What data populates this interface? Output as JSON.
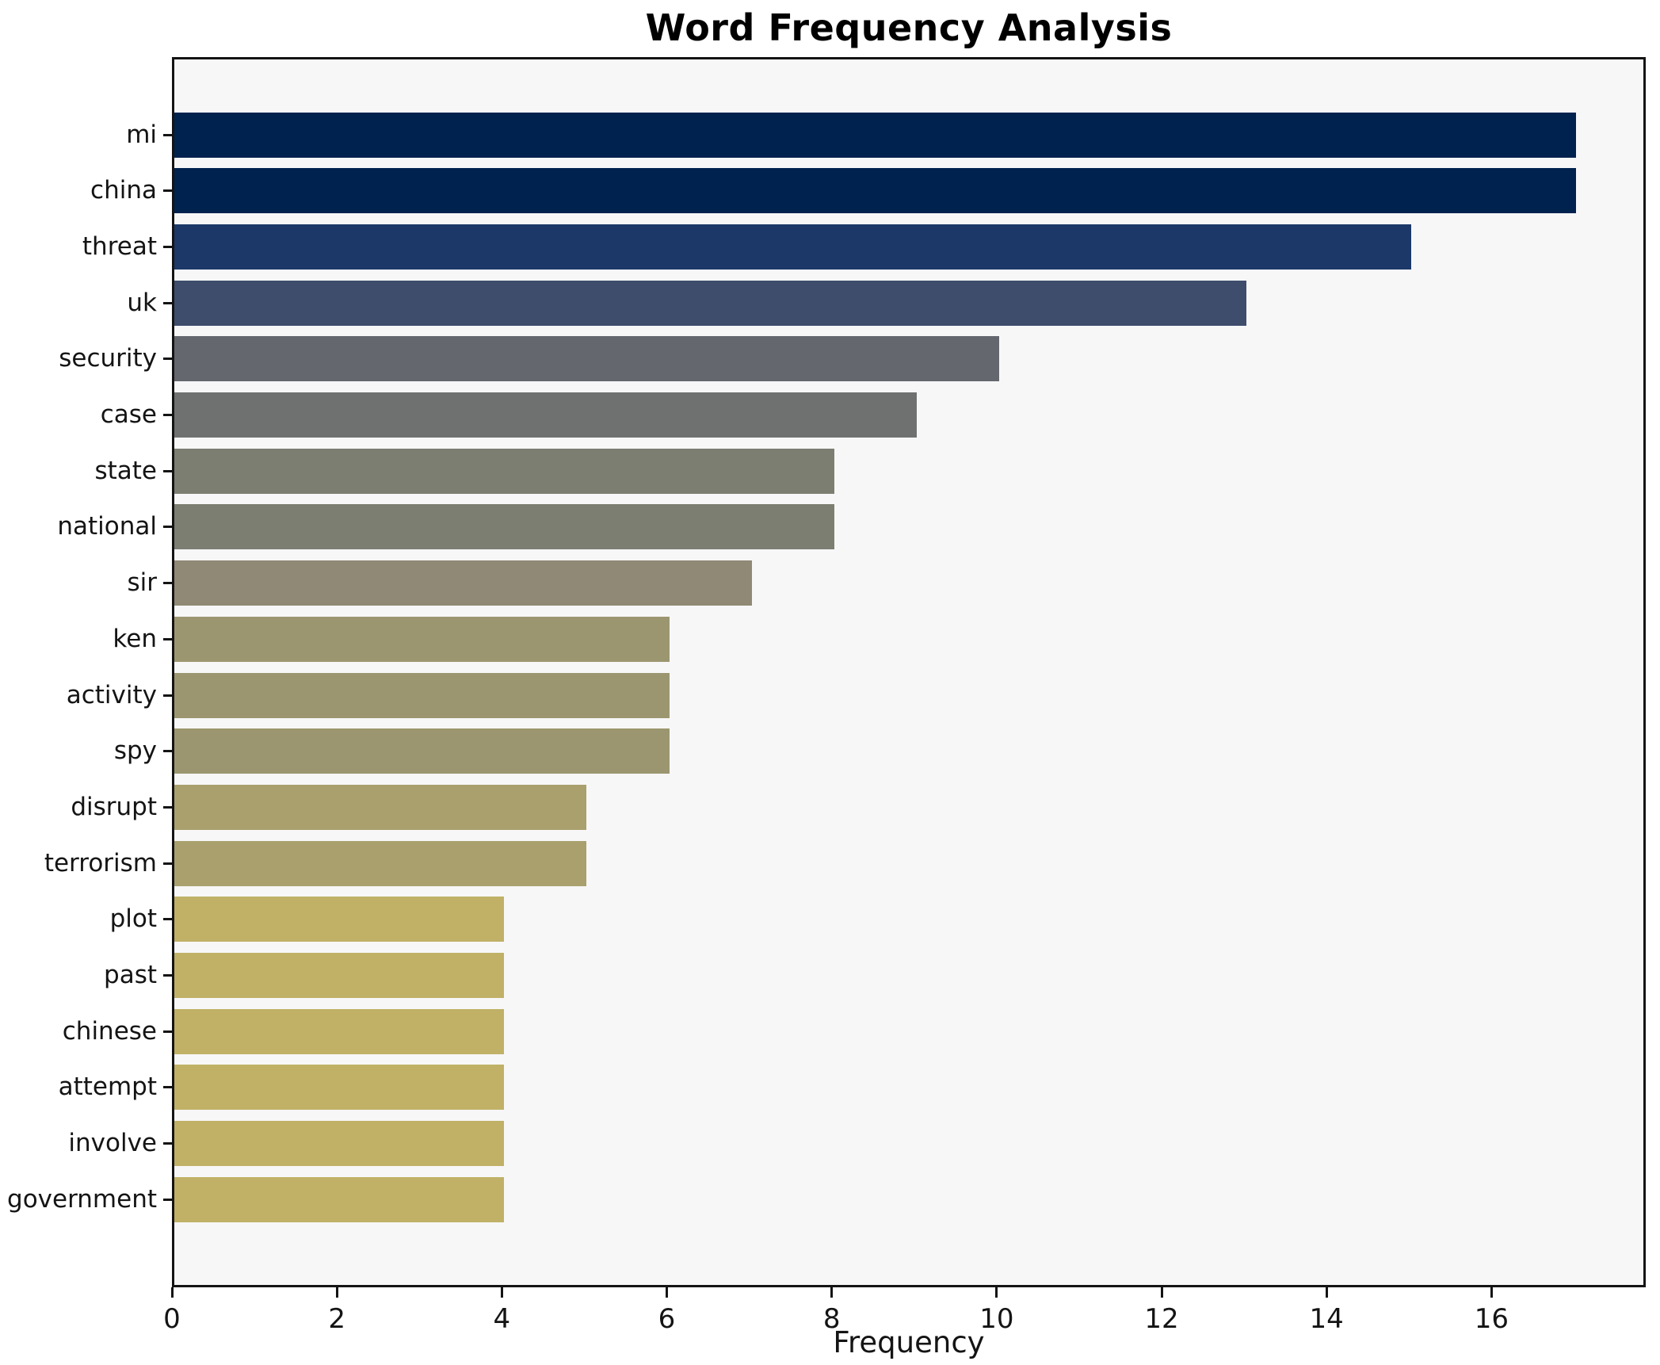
{
  "chart_data": {
    "type": "bar",
    "orientation": "horizontal",
    "title": "Word Frequency Analysis",
    "xlabel": "Frequency",
    "ylabel": "",
    "categories": [
      "mi",
      "china",
      "threat",
      "uk",
      "security",
      "case",
      "state",
      "national",
      "sir",
      "ken",
      "activity",
      "spy",
      "disrupt",
      "terrorism",
      "plot",
      "past",
      "chinese",
      "attempt",
      "involve",
      "government"
    ],
    "values": [
      17,
      17,
      15,
      13,
      10,
      9,
      8,
      8,
      7,
      6,
      6,
      6,
      5,
      5,
      4,
      4,
      4,
      4,
      4,
      4
    ],
    "bar_colors": [
      "#00224f",
      "#00224f",
      "#1c3869",
      "#3e4d6b",
      "#65676e",
      "#6f7170",
      "#7c7e71",
      "#7c7e71",
      "#8f8975",
      "#9c9670",
      "#9c9670",
      "#9c9670",
      "#aaa06e",
      "#aaa06e",
      "#c0b167",
      "#c0b167",
      "#c0b167",
      "#c0b167",
      "#c0b167",
      "#c0b167"
    ],
    "xlim": [
      0,
      17.87
    ],
    "xticks": [
      0,
      2,
      4,
      6,
      8,
      10,
      12,
      14,
      16
    ],
    "grid": false,
    "legend_position": "none",
    "plot_background": "#f7f7f8",
    "figure_background": "#ffffff",
    "spine_color": "#141414",
    "text_color": "#141414"
  }
}
